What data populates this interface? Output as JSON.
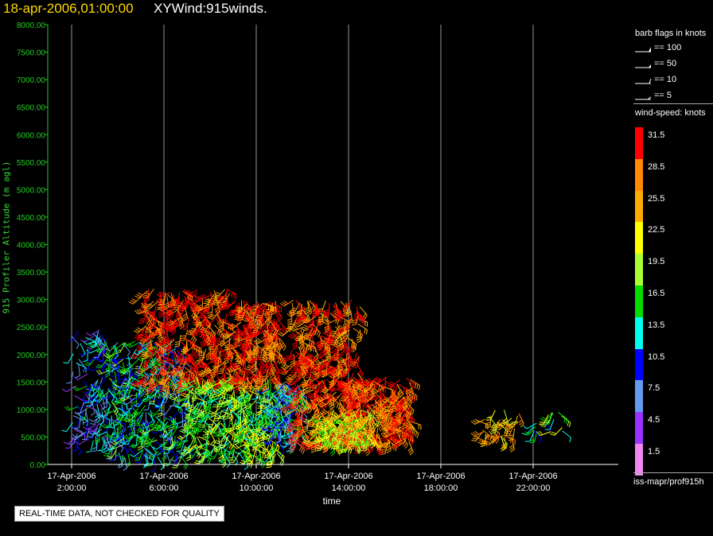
{
  "header": {
    "date_title": "18-apr-2006,01:00:00",
    "plot_title": "XYWind:915winds."
  },
  "chart_data": {
    "type": "scatter",
    "title": "XYWind:915winds.",
    "ylabel": "915 Profiler Altitude (m agl)",
    "xlabel": "time",
    "ylim": [
      0,
      8000
    ],
    "yticks": [
      "8000.00",
      "7500.00",
      "7000.00",
      "6500.00",
      "6000.00",
      "5500.00",
      "5000.00",
      "4500.00",
      "4000.00",
      "3500.00",
      "3000.00",
      "2500.00",
      "2000.00",
      "1500.00",
      "1000.00",
      "500.00",
      "0.00"
    ],
    "xticks": [
      {
        "date": "17-Apr-2006",
        "time": "2:00:00",
        "hour": 2
      },
      {
        "date": "17-Apr-2006",
        "time": "6:00:00",
        "hour": 6
      },
      {
        "date": "17-Apr-2006",
        "time": "10:00:00",
        "hour": 10
      },
      {
        "date": "17-Apr-2006",
        "time": "14:00:00",
        "hour": 14
      },
      {
        "date": "17-Apr-2006",
        "time": "18:00:00",
        "hour": 18
      },
      {
        "date": "17-Apr-2006",
        "time": "22:00:00",
        "hour": 22
      }
    ],
    "grid": "vertical lines at major ticks",
    "colors": {
      "axis": "#22cc22",
      "grid": "#bbbbbb"
    }
  },
  "legend": {
    "barb_title": "barb flags in knots",
    "barbs": [
      {
        "label": "== 100"
      },
      {
        "label": "== 50"
      },
      {
        "label": "== 10"
      },
      {
        "label": "== 5"
      }
    ],
    "speed_title": "wind-speed: knots",
    "speed_bins": [
      {
        "label": "31.5",
        "color": "#ff0000"
      },
      {
        "label": "28.5",
        "color": "#ff8800"
      },
      {
        "label": "25.5",
        "color": "#ffaa00"
      },
      {
        "label": "22.5",
        "color": "#ffff00"
      },
      {
        "label": "19.5",
        "color": "#aaff33"
      },
      {
        "label": "16.5",
        "color": "#00dd00"
      },
      {
        "label": "13.5",
        "color": "#00ffee"
      },
      {
        "label": "10.5",
        "color": "#0000ff"
      },
      {
        "label": "7.5",
        "color": "#6699ee"
      },
      {
        "label": "4.5",
        "color": "#9933ff"
      },
      {
        "label": "1.5",
        "color": "#ee88ee"
      }
    ],
    "source": "iss-mapr/prof915h"
  },
  "footer": {
    "qc_note": "REAL-TIME DATA, NOT CHECKED FOR QUALITY"
  }
}
